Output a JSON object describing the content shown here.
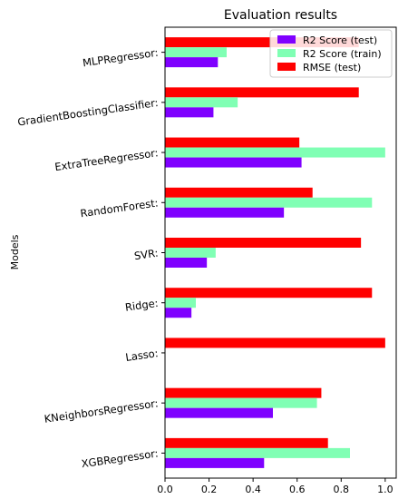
{
  "chart_data": {
    "type": "bar",
    "orientation": "horizontal",
    "title": "Evaluation results",
    "xlabel": "",
    "ylabel": "Models",
    "xlim": [
      0,
      1.05
    ],
    "xticks": [
      "0.0",
      "0.2",
      "0.4",
      "0.6",
      "0.8",
      "1.0"
    ],
    "categories": [
      "MLPRegressor:",
      "GradientBoostingClassifier:",
      "ExtraTreeRegressor:",
      "RandomForest:",
      "SVR:",
      "Ridge:",
      "Lasso:",
      "KNeighborsRegressor:",
      "XGBRegressor:"
    ],
    "series": [
      {
        "name": "R2 Score (test)",
        "color": "#7f00ff",
        "values": [
          0.24,
          0.22,
          0.62,
          0.54,
          0.19,
          0.12,
          0.0,
          0.49,
          0.45
        ]
      },
      {
        "name": "R2 Score (train)",
        "color": "#80ffb4",
        "values": [
          0.28,
          0.33,
          1.0,
          0.94,
          0.23,
          0.14,
          0.0,
          0.69,
          0.84
        ]
      },
      {
        "name": "RMSE (test)",
        "color": "#ff0000",
        "values": [
          0.88,
          0.88,
          0.61,
          0.67,
          0.89,
          0.94,
          1.0,
          0.71,
          0.74
        ]
      }
    ],
    "legend_position": "top-right",
    "grid": false
  }
}
